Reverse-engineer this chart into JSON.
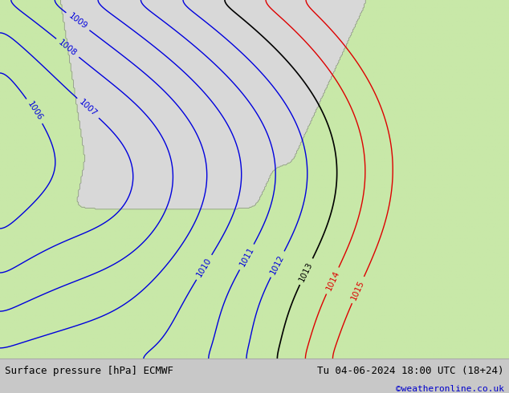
{
  "title_left": "Surface pressure [hPa] ECMWF",
  "title_right": "Tu 04-06-2024 18:00 UTC (18+24)",
  "credit": "©weatheronline.co.uk",
  "sea_color": "#d8d8d8",
  "land_color": "#c8e8a8",
  "footer_bg": "#c8c8c8",
  "blue_contour_color": "#0000dd",
  "black_contour_color": "#000000",
  "red_contour_color": "#dd0000",
  "contour_label_fontsize": 7.5,
  "footer_fontsize": 9,
  "credit_fontsize": 8,
  "credit_color": "#0000cc",
  "figsize": [
    6.34,
    4.9
  ],
  "dpi": 100
}
